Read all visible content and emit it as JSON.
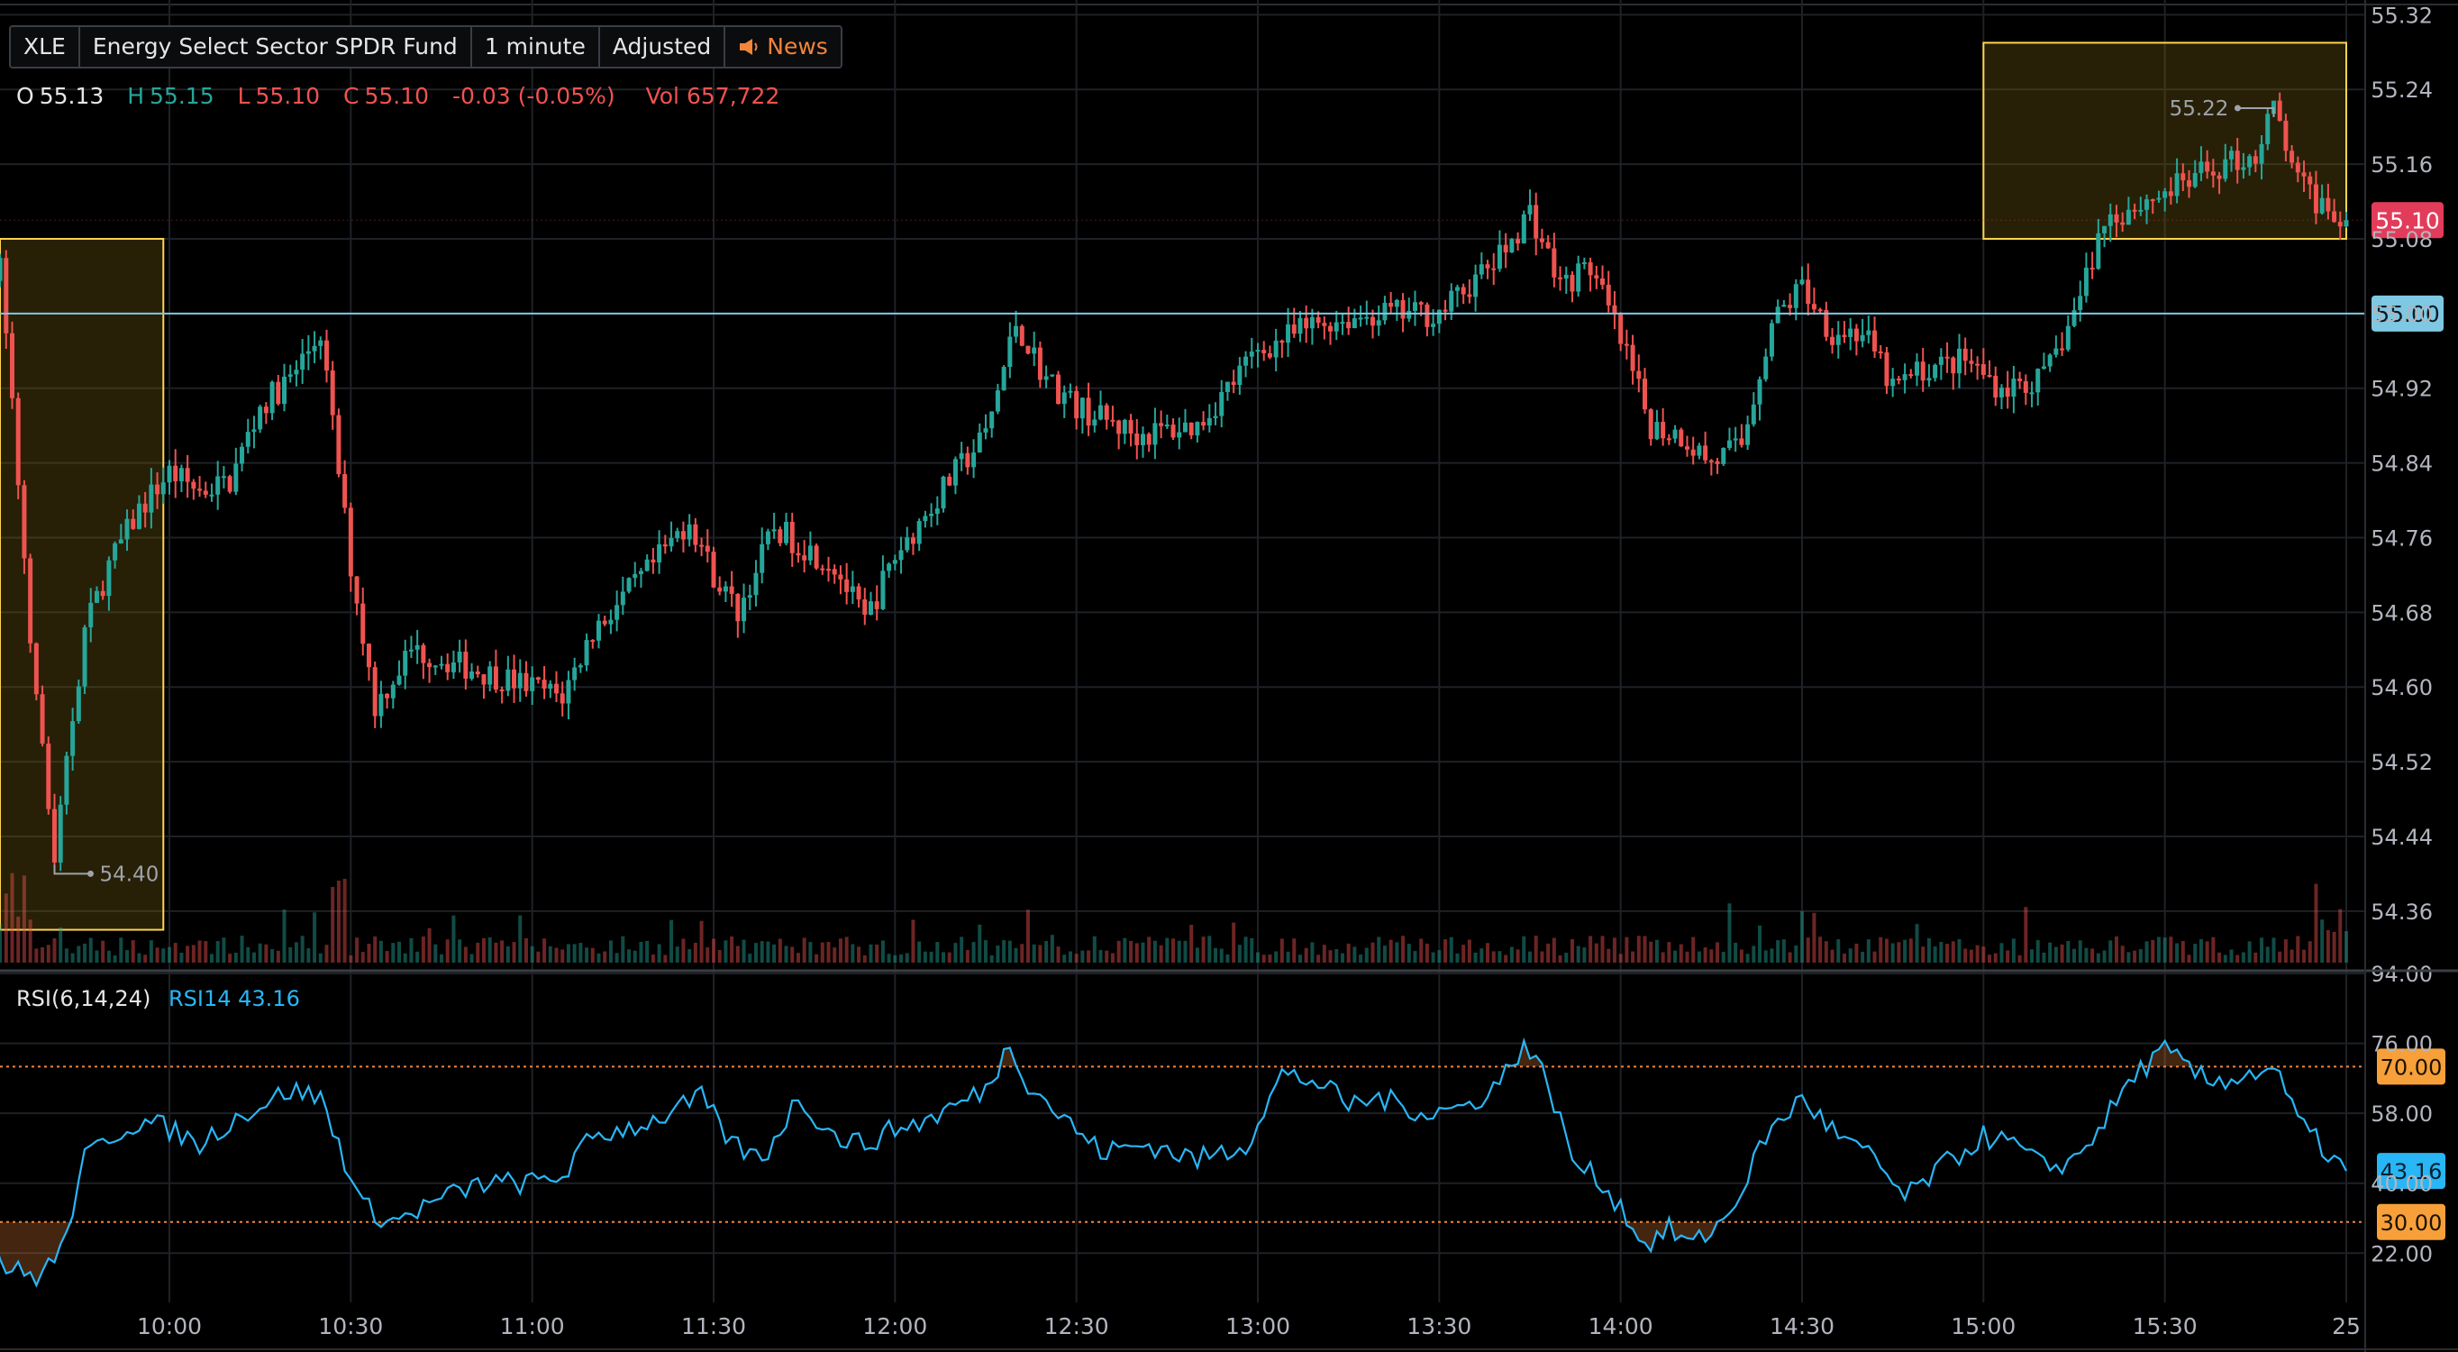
{
  "header": {
    "symbol": "XLE",
    "name": "Energy Select Sector SPDR Fund",
    "interval": "1 minute",
    "adjustment": "Adjusted",
    "news": "News"
  },
  "ohlc": {
    "o_label": "O",
    "o": "55.13",
    "h_label": "H",
    "h": "55.15",
    "l_label": "L",
    "l": "55.10",
    "c_label": "C",
    "c": "55.10",
    "change": "-0.03 (-0.05%)",
    "vol_label": "Vol",
    "vol": "657,722"
  },
  "rsi_info": {
    "label": "RSI(6,14,24)",
    "value": "RSI14 43.16"
  },
  "colors": {
    "up": "#26a69a",
    "down": "#ef5350",
    "rsi": "#29b6f6",
    "price_line": "#7ec8e3",
    "highlight": "#ffd54f",
    "level": "#f2843b",
    "last_price": "#e23c5a"
  },
  "chart_data": [
    {
      "type": "candlestick",
      "y_ticks": [
        "55.32",
        "55.24",
        "55.16",
        "55.08",
        "55.00",
        "54.92",
        "54.84",
        "54.76",
        "54.68",
        "54.60",
        "54.52",
        "54.44",
        "54.36"
      ],
      "ylim": [
        54.3,
        55.33
      ],
      "x_ticks": [
        "10:00",
        "10:30",
        "11:00",
        "11:30",
        "12:00",
        "12:30",
        "13:00",
        "13:30",
        "14:00",
        "14:30",
        "15:00",
        "15:30",
        "25"
      ],
      "session": [
        "09:30",
        "16:00"
      ],
      "horizontal_line": {
        "value": 55.0,
        "label": "55.00"
      },
      "last_price": {
        "value": 55.1,
        "label": "55.10"
      },
      "high_marker": {
        "value": 55.22,
        "label": "55.22",
        "time": "15:48"
      },
      "low_marker": {
        "value": 54.4,
        "label": "54.40",
        "time": "09:41"
      },
      "highlight_boxes": [
        {
          "from": "09:00",
          "to": "09:59",
          "y_top": 55.08,
          "y_bottom": 54.34
        },
        {
          "from": "15:00",
          "to": "16:00",
          "y_top": 55.29,
          "y_bottom": 55.08
        }
      ],
      "anchors": [
        [
          "09:30",
          55.03
        ],
        [
          "09:32",
          55.05
        ],
        [
          "09:35",
          54.82
        ],
        [
          "09:38",
          54.58
        ],
        [
          "09:41",
          54.42
        ],
        [
          "09:43",
          54.52
        ],
        [
          "09:46",
          54.66
        ],
        [
          "09:50",
          54.73
        ],
        [
          "09:55",
          54.79
        ],
        [
          "10:00",
          54.83
        ],
        [
          "10:05",
          54.81
        ],
        [
          "10:10",
          54.82
        ],
        [
          "10:15",
          54.9
        ],
        [
          "10:20",
          54.93
        ],
        [
          "10:25",
          54.98
        ],
        [
          "10:27",
          54.88
        ],
        [
          "10:30",
          54.73
        ],
        [
          "10:34",
          54.58
        ],
        [
          "10:40",
          54.64
        ],
        [
          "10:50",
          54.62
        ],
        [
          "11:00",
          54.6
        ],
        [
          "11:05",
          54.59
        ],
        [
          "11:10",
          54.66
        ],
        [
          "11:20",
          54.73
        ],
        [
          "11:26",
          54.78
        ],
        [
          "11:30",
          54.72
        ],
        [
          "11:34",
          54.68
        ],
        [
          "11:40",
          54.77
        ],
        [
          "11:50",
          54.73
        ],
        [
          "11:55",
          54.67
        ],
        [
          "12:00",
          54.74
        ],
        [
          "12:10",
          54.83
        ],
        [
          "12:15",
          54.87
        ],
        [
          "12:20",
          54.99
        ],
        [
          "12:25",
          54.93
        ],
        [
          "12:30",
          54.9
        ],
        [
          "12:40",
          54.87
        ],
        [
          "12:50",
          54.88
        ],
        [
          "13:00",
          54.96
        ],
        [
          "13:10",
          54.99
        ],
        [
          "13:20",
          55.0
        ],
        [
          "13:30",
          55.0
        ],
        [
          "13:40",
          55.06
        ],
        [
          "13:45",
          55.11
        ],
        [
          "13:50",
          55.03
        ],
        [
          "13:55",
          55.05
        ],
        [
          "14:00",
          54.97
        ],
        [
          "14:05",
          54.88
        ],
        [
          "14:10",
          54.87
        ],
        [
          "14:15",
          54.84
        ],
        [
          "14:20",
          54.86
        ],
        [
          "14:25",
          54.99
        ],
        [
          "14:30",
          55.03
        ],
        [
          "14:35",
          54.98
        ],
        [
          "14:40",
          54.98
        ],
        [
          "14:45",
          54.92
        ],
        [
          "14:50",
          54.94
        ],
        [
          "14:57",
          54.95
        ],
        [
          "15:03",
          54.92
        ],
        [
          "15:10",
          54.93
        ],
        [
          "15:15",
          55.0
        ],
        [
          "15:20",
          55.1
        ],
        [
          "15:30",
          55.13
        ],
        [
          "15:40",
          55.16
        ],
        [
          "15:45",
          55.17
        ],
        [
          "15:48",
          55.22
        ],
        [
          "15:52",
          55.14
        ],
        [
          "15:55",
          55.12
        ],
        [
          "16:00",
          55.1
        ]
      ]
    },
    {
      "type": "line",
      "name": "RSI14",
      "y_ticks": [
        "94.00",
        "76.00",
        "58.00",
        "40.00",
        "22.00"
      ],
      "ylim": [
        10,
        94
      ],
      "levels": [
        {
          "value": 70,
          "label": "70.00"
        },
        {
          "value": 30,
          "label": "30.00"
        }
      ],
      "last": {
        "value": 43.16,
        "label": "43.16"
      },
      "anchors": [
        [
          "09:30",
          30
        ],
        [
          "09:33",
          18
        ],
        [
          "09:38",
          16
        ],
        [
          "09:42",
          22
        ],
        [
          "09:46",
          46
        ],
        [
          "09:50",
          52
        ],
        [
          "09:55",
          56
        ],
        [
          "10:00",
          54
        ],
        [
          "10:05",
          50
        ],
        [
          "10:10",
          56
        ],
        [
          "10:15",
          60
        ],
        [
          "10:20",
          64
        ],
        [
          "10:25",
          62
        ],
        [
          "10:28",
          50
        ],
        [
          "10:32",
          34
        ],
        [
          "10:37",
          30
        ],
        [
          "10:45",
          36
        ],
        [
          "10:52",
          40
        ],
        [
          "11:00",
          40
        ],
        [
          "11:05",
          42
        ],
        [
          "11:10",
          52
        ],
        [
          "11:20",
          56
        ],
        [
          "11:28",
          62
        ],
        [
          "11:33",
          50
        ],
        [
          "11:38",
          46
        ],
        [
          "11:44",
          62
        ],
        [
          "11:50",
          52
        ],
        [
          "11:55",
          50
        ],
        [
          "12:00",
          54
        ],
        [
          "12:05",
          56
        ],
        [
          "12:10",
          60
        ],
        [
          "12:15",
          64
        ],
        [
          "12:19",
          76
        ],
        [
          "12:22",
          66
        ],
        [
          "12:27",
          58
        ],
        [
          "12:34",
          48
        ],
        [
          "12:42",
          50
        ],
        [
          "12:50",
          46
        ],
        [
          "12:58",
          50
        ],
        [
          "13:04",
          68
        ],
        [
          "13:10",
          66
        ],
        [
          "13:15",
          60
        ],
        [
          "13:20",
          62
        ],
        [
          "13:28",
          58
        ],
        [
          "13:35",
          60
        ],
        [
          "13:40",
          66
        ],
        [
          "13:44",
          76
        ],
        [
          "13:48",
          66
        ],
        [
          "13:52",
          46
        ],
        [
          "13:57",
          40
        ],
        [
          "14:00",
          34
        ],
        [
          "14:04",
          24
        ],
        [
          "14:08",
          28
        ],
        [
          "14:12",
          24
        ],
        [
          "14:18",
          32
        ],
        [
          "14:24",
          52
        ],
        [
          "14:30",
          62
        ],
        [
          "14:36",
          52
        ],
        [
          "14:42",
          46
        ],
        [
          "14:47",
          36
        ],
        [
          "14:53",
          44
        ],
        [
          "15:00",
          52
        ],
        [
          "15:05",
          50
        ],
        [
          "15:10",
          44
        ],
        [
          "15:15",
          46
        ],
        [
          "15:20",
          56
        ],
        [
          "15:25",
          68
        ],
        [
          "15:30",
          74
        ],
        [
          "15:37",
          66
        ],
        [
          "15:44",
          68
        ],
        [
          "15:48",
          70
        ],
        [
          "15:52",
          56
        ],
        [
          "15:58",
          46
        ],
        [
          "16:00",
          43.16
        ]
      ]
    }
  ]
}
